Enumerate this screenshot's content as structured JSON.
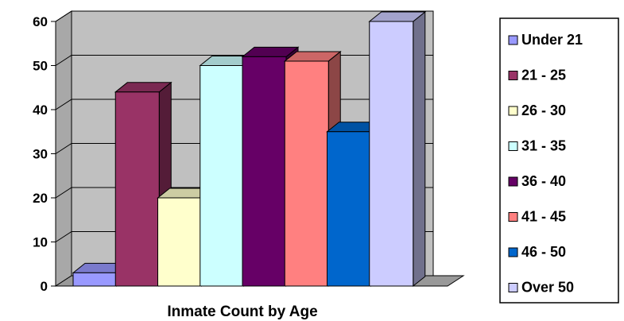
{
  "chart_data": {
    "type": "bar",
    "title": "",
    "xlabel": "Inmate Count by Age",
    "ylabel": "",
    "ylim": [
      0,
      60
    ],
    "yticks": [
      0,
      10,
      20,
      30,
      40,
      50,
      60
    ],
    "grid": true,
    "three_d": true,
    "legend_position": "right",
    "plot_background": "#c0c0c0",
    "series": [
      {
        "name": "Under 21",
        "value": 3,
        "color": "#9999ff"
      },
      {
        "name": "21 - 25",
        "value": 44,
        "color": "#993366"
      },
      {
        "name": "26 - 30",
        "value": 20,
        "color": "#ffffcc"
      },
      {
        "name": "31 - 35",
        "value": 50,
        "color": "#ccffff"
      },
      {
        "name": "36 - 40",
        "value": 52,
        "color": "#660066"
      },
      {
        "name": "41 - 45",
        "value": 51,
        "color": "#ff8080"
      },
      {
        "name": "46 - 50",
        "value": 35,
        "color": "#0066cc"
      },
      {
        "name": "Over 50",
        "value": 60,
        "color": "#ccccff"
      }
    ]
  }
}
